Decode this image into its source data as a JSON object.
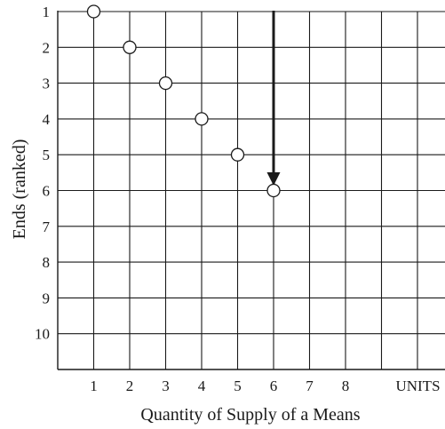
{
  "chart_data": {
    "type": "scatter",
    "title": "",
    "xlabel": "Quantity of Supply of a Means",
    "ylabel": "Ends (ranked)",
    "x_tick_labels": [
      "1",
      "2",
      "3",
      "4",
      "5",
      "6",
      "7",
      "8",
      "UNITS"
    ],
    "y_tick_labels": [
      "1",
      "2",
      "3",
      "4",
      "5",
      "6",
      "7",
      "8",
      "9",
      "10"
    ],
    "xlim": [
      0,
      10
    ],
    "ylim": [
      11,
      1
    ],
    "y_inverted": true,
    "grid": true,
    "marker": "open-circle",
    "series": [
      {
        "points": [
          {
            "x": 1,
            "y": 1
          },
          {
            "x": 2,
            "y": 2
          },
          {
            "x": 3,
            "y": 3
          },
          {
            "x": 4,
            "y": 4
          },
          {
            "x": 5,
            "y": 5
          },
          {
            "x": 6,
            "y": 6
          }
        ]
      }
    ],
    "annotations": [
      {
        "type": "arrow",
        "x": 6,
        "from_y": 1,
        "to_y": 6
      }
    ]
  },
  "colors": {
    "line": "#1a1a1a",
    "background": "#ffffff"
  }
}
